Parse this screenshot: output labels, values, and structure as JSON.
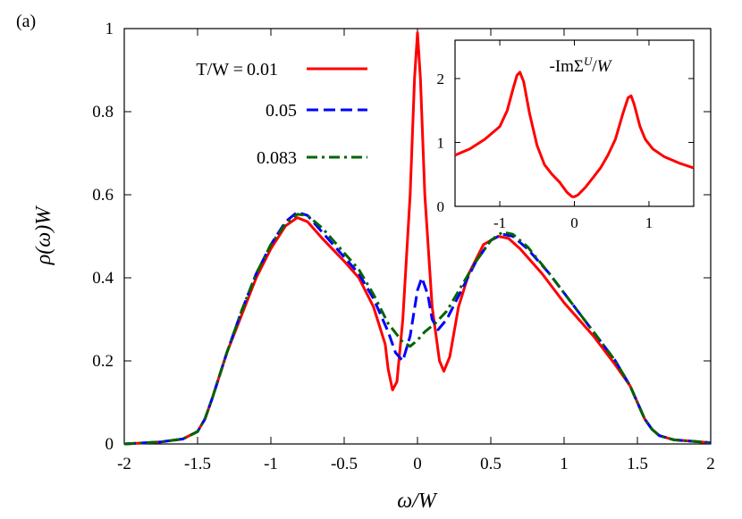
{
  "panel_label": "(a)",
  "chart_data": [
    {
      "type": "line",
      "title": "",
      "xlabel": "ω/W",
      "ylabel": "ρ(ω)W",
      "xlim": [
        -2,
        2
      ],
      "ylim": [
        0,
        1
      ],
      "xticks": [
        "-2",
        "-1.5",
        "-1",
        "-0.5",
        "0",
        "0.5",
        "1",
        "1.5",
        "2"
      ],
      "yticks": [
        "0",
        "0.2",
        "0.4",
        "0.6",
        "0.8",
        "1"
      ],
      "legend_title": "T/W =",
      "legend_position": "top-left",
      "grid": false,
      "series": [
        {
          "name": "0.01",
          "color": "#ff0000",
          "dash": "solid",
          "points": [
            [
              -2,
              0.0
            ],
            [
              -1.75,
              0.005
            ],
            [
              -1.6,
              0.012
            ],
            [
              -1.5,
              0.03
            ],
            [
              -1.45,
              0.06
            ],
            [
              -1.4,
              0.11
            ],
            [
              -1.3,
              0.22
            ],
            [
              -1.2,
              0.31
            ],
            [
              -1.1,
              0.4
            ],
            [
              -1.0,
              0.47
            ],
            [
              -0.9,
              0.525
            ],
            [
              -0.82,
              0.545
            ],
            [
              -0.75,
              0.535
            ],
            [
              -0.65,
              0.495
            ],
            [
              -0.5,
              0.44
            ],
            [
              -0.4,
              0.4
            ],
            [
              -0.3,
              0.33
            ],
            [
              -0.22,
              0.24
            ],
            [
              -0.2,
              0.18
            ],
            [
              -0.17,
              0.13
            ],
            [
              -0.14,
              0.15
            ],
            [
              -0.1,
              0.3
            ],
            [
              -0.05,
              0.6
            ],
            [
              -0.02,
              0.88
            ],
            [
              0.0,
              0.99
            ],
            [
              0.02,
              0.88
            ],
            [
              0.05,
              0.6
            ],
            [
              0.1,
              0.33
            ],
            [
              0.15,
              0.2
            ],
            [
              0.18,
              0.175
            ],
            [
              0.22,
              0.21
            ],
            [
              0.28,
              0.33
            ],
            [
              0.35,
              0.41
            ],
            [
              0.45,
              0.48
            ],
            [
              0.55,
              0.5
            ],
            [
              0.62,
              0.495
            ],
            [
              0.7,
              0.47
            ],
            [
              0.85,
              0.41
            ],
            [
              1.0,
              0.34
            ],
            [
              1.2,
              0.26
            ],
            [
              1.35,
              0.19
            ],
            [
              1.45,
              0.14
            ],
            [
              1.5,
              0.1
            ],
            [
              1.55,
              0.06
            ],
            [
              1.6,
              0.035
            ],
            [
              1.65,
              0.02
            ],
            [
              1.75,
              0.01
            ],
            [
              2.0,
              0.003
            ]
          ]
        },
        {
          "name": "0.05",
          "color": "#0000ff",
          "dash": "dashed",
          "points": [
            [
              -2,
              0.0
            ],
            [
              -1.75,
              0.005
            ],
            [
              -1.6,
              0.012
            ],
            [
              -1.5,
              0.03
            ],
            [
              -1.45,
              0.06
            ],
            [
              -1.4,
              0.11
            ],
            [
              -1.3,
              0.22
            ],
            [
              -1.2,
              0.32
            ],
            [
              -1.1,
              0.41
            ],
            [
              -1.0,
              0.48
            ],
            [
              -0.9,
              0.535
            ],
            [
              -0.82,
              0.558
            ],
            [
              -0.75,
              0.55
            ],
            [
              -0.65,
              0.51
            ],
            [
              -0.5,
              0.45
            ],
            [
              -0.4,
              0.41
            ],
            [
              -0.3,
              0.35
            ],
            [
              -0.2,
              0.27
            ],
            [
              -0.15,
              0.22
            ],
            [
              -0.1,
              0.2
            ],
            [
              -0.05,
              0.26
            ],
            [
              0.0,
              0.37
            ],
            [
              0.03,
              0.4
            ],
            [
              0.07,
              0.36
            ],
            [
              0.1,
              0.3
            ],
            [
              0.14,
              0.275
            ],
            [
              0.2,
              0.3
            ],
            [
              0.3,
              0.37
            ],
            [
              0.4,
              0.44
            ],
            [
              0.5,
              0.49
            ],
            [
              0.58,
              0.505
            ],
            [
              0.65,
              0.5
            ],
            [
              0.75,
              0.47
            ],
            [
              0.9,
              0.41
            ],
            [
              1.05,
              0.34
            ],
            [
              1.2,
              0.27
            ],
            [
              1.35,
              0.2
            ],
            [
              1.45,
              0.14
            ],
            [
              1.5,
              0.1
            ],
            [
              1.55,
              0.06
            ],
            [
              1.6,
              0.035
            ],
            [
              1.65,
              0.02
            ],
            [
              1.75,
              0.01
            ],
            [
              2.0,
              0.003
            ]
          ]
        },
        {
          "name": "0.083",
          "color": "#006400",
          "dash": "dashdot",
          "points": [
            [
              -2,
              0.0
            ],
            [
              -1.75,
              0.005
            ],
            [
              -1.6,
              0.012
            ],
            [
              -1.5,
              0.03
            ],
            [
              -1.45,
              0.06
            ],
            [
              -1.4,
              0.11
            ],
            [
              -1.3,
              0.22
            ],
            [
              -1.2,
              0.32
            ],
            [
              -1.1,
              0.41
            ],
            [
              -1.0,
              0.48
            ],
            [
              -0.9,
              0.53
            ],
            [
              -0.82,
              0.553
            ],
            [
              -0.75,
              0.55
            ],
            [
              -0.65,
              0.52
            ],
            [
              -0.5,
              0.46
            ],
            [
              -0.4,
              0.42
            ],
            [
              -0.3,
              0.36
            ],
            [
              -0.2,
              0.29
            ],
            [
              -0.1,
              0.245
            ],
            [
              -0.05,
              0.235
            ],
            [
              0.0,
              0.25
            ],
            [
              0.05,
              0.27
            ],
            [
              0.12,
              0.29
            ],
            [
              0.2,
              0.32
            ],
            [
              0.3,
              0.38
            ],
            [
              0.4,
              0.44
            ],
            [
              0.5,
              0.49
            ],
            [
              0.58,
              0.51
            ],
            [
              0.65,
              0.505
            ],
            [
              0.75,
              0.475
            ],
            [
              0.9,
              0.41
            ],
            [
              1.05,
              0.34
            ],
            [
              1.2,
              0.27
            ],
            [
              1.35,
              0.2
            ],
            [
              1.45,
              0.14
            ],
            [
              1.5,
              0.1
            ],
            [
              1.55,
              0.06
            ],
            [
              1.6,
              0.035
            ],
            [
              1.65,
              0.02
            ],
            [
              1.75,
              0.01
            ],
            [
              2.0,
              0.003
            ]
          ]
        }
      ]
    },
    {
      "type": "line",
      "title": "-ImΣ^U/W",
      "xlabel": "",
      "ylabel": "",
      "xlim": [
        -1.6,
        1.6
      ],
      "ylim": [
        0,
        2.6
      ],
      "xticks": [
        "-1",
        "0",
        "1"
      ],
      "yticks": [
        "0",
        "1",
        "2"
      ],
      "grid": false,
      "series": [
        {
          "name": "",
          "color": "#ff0000",
          "dash": "solid",
          "points": [
            [
              -1.6,
              0.8
            ],
            [
              -1.4,
              0.9
            ],
            [
              -1.2,
              1.05
            ],
            [
              -1.0,
              1.25
            ],
            [
              -0.9,
              1.5
            ],
            [
              -0.82,
              1.85
            ],
            [
              -0.77,
              2.05
            ],
            [
              -0.73,
              2.1
            ],
            [
              -0.68,
              1.95
            ],
            [
              -0.6,
              1.45
            ],
            [
              -0.5,
              0.95
            ],
            [
              -0.4,
              0.65
            ],
            [
              -0.3,
              0.5
            ],
            [
              -0.2,
              0.38
            ],
            [
              -0.1,
              0.22
            ],
            [
              -0.03,
              0.15
            ],
            [
              0.0,
              0.15
            ],
            [
              0.05,
              0.18
            ],
            [
              0.15,
              0.3
            ],
            [
              0.25,
              0.45
            ],
            [
              0.35,
              0.6
            ],
            [
              0.45,
              0.8
            ],
            [
              0.55,
              1.05
            ],
            [
              0.65,
              1.45
            ],
            [
              0.72,
              1.7
            ],
            [
              0.76,
              1.73
            ],
            [
              0.8,
              1.6
            ],
            [
              0.88,
              1.25
            ],
            [
              0.95,
              1.05
            ],
            [
              1.05,
              0.9
            ],
            [
              1.2,
              0.78
            ],
            [
              1.4,
              0.68
            ],
            [
              1.6,
              0.6
            ]
          ]
        }
      ]
    }
  ]
}
